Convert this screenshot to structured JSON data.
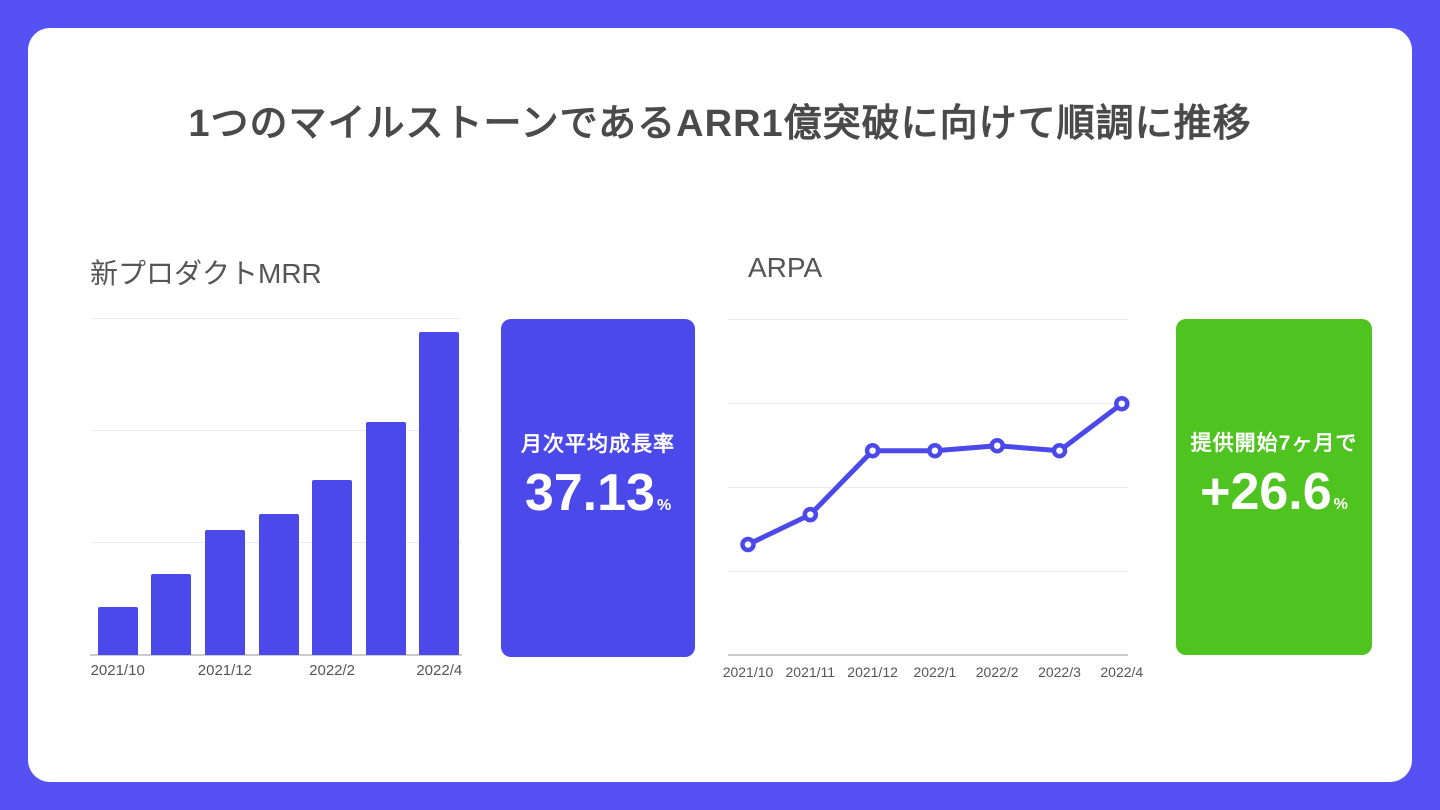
{
  "title": "1つのマイルストーンであるARR1億突破に向けて順調に推移",
  "colors": {
    "frame_border": "#5551F2",
    "slide_background": "#ffffff",
    "accent_blue": "#4C49EB",
    "accent_green": "#4FC320",
    "title_text": "#4a4a4a",
    "section_text": "#555555",
    "tick_text": "#555555",
    "gridline": "#ececec",
    "axis_line": "#cccccc"
  },
  "mrr_section": {
    "title": "新プロダクトMRR",
    "highlight_card": {
      "label": "月次平均成長率",
      "value": "37.13",
      "unit": "%",
      "color": "#4C49EB"
    }
  },
  "arpa_section": {
    "title": "ARPA",
    "highlight_card": {
      "label": "提供開始7ヶ月で",
      "value": "+26.6",
      "unit": "%",
      "color": "#4FC320"
    }
  },
  "chart_data": [
    {
      "type": "bar",
      "title": "新プロダクトMRR",
      "categories": [
        "2021/10",
        "2021/11",
        "2021/12",
        "2022/1",
        "2022/2",
        "2022/3",
        "2022/4"
      ],
      "values": [
        14.2,
        24.0,
        37.1,
        41.8,
        51.9,
        69.1,
        95.8
      ],
      "value_note": "no y-axis labels shown; values are % of plot height (top gridline = 100)",
      "xlabel": "",
      "ylabel": "",
      "ylim": [
        0,
        100
      ],
      "x_tick_shown_indices": [
        0,
        2,
        4,
        6
      ],
      "x_tick_shown_labels": [
        "2021/10",
        "2021/12",
        "2022/2",
        "2022/4"
      ],
      "gridline_count": 3,
      "grid": "horizontal only",
      "legend": "none",
      "bar_color": "#4C49EB"
    },
    {
      "type": "line",
      "title": "ARPA",
      "categories": [
        "2021/10",
        "2021/11",
        "2021/12",
        "2022/1",
        "2022/2",
        "2022/3",
        "2022/4"
      ],
      "values": [
        32.9,
        41.8,
        60.8,
        60.8,
        62.3,
        60.8,
        74.8
      ],
      "value_note": "no y-axis labels shown; values are % of plot height (top gridline = 100)",
      "xlabel": "",
      "ylabel": "",
      "ylim": [
        0,
        100
      ],
      "gridline_count": 4,
      "grid": "horizontal only",
      "legend": "none",
      "line_color": "#4C49EB",
      "marker": "open-circle"
    }
  ]
}
